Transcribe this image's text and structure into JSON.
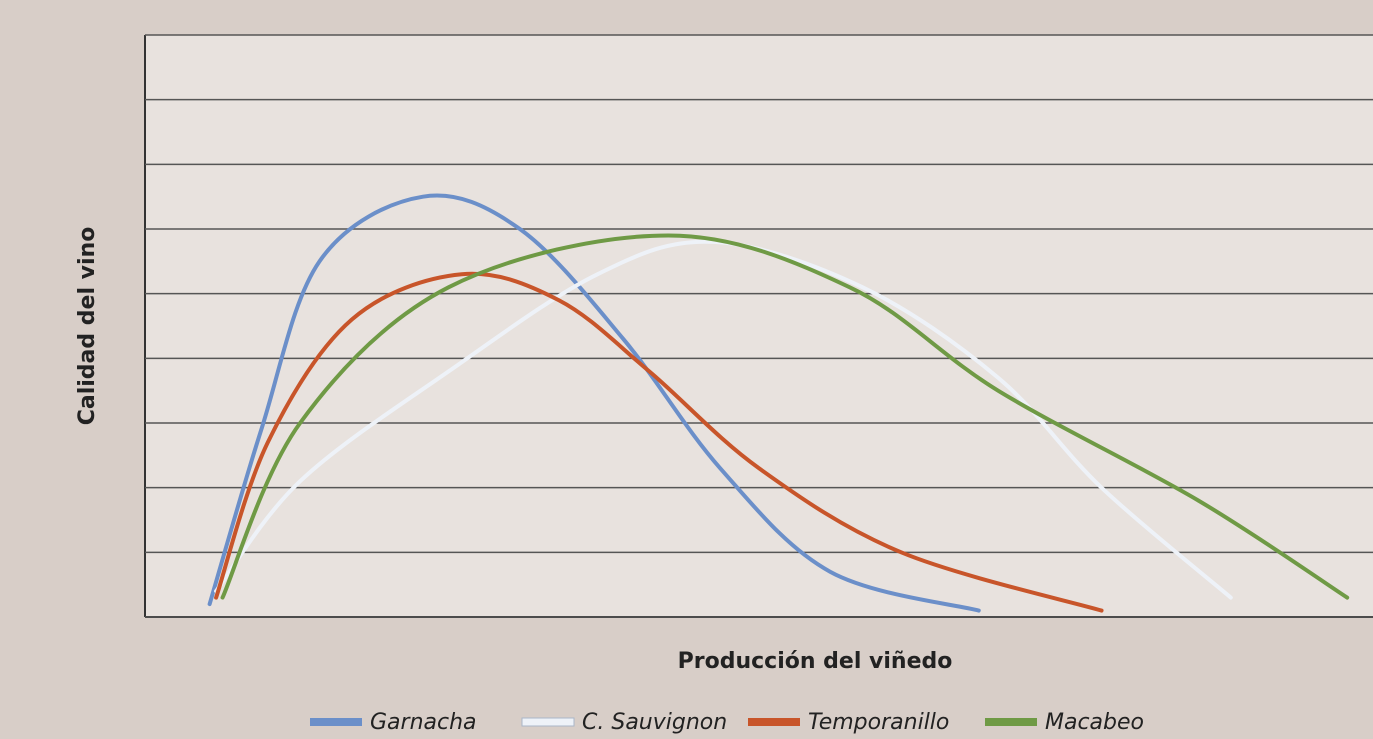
{
  "chart_data": {
    "type": "line",
    "x_label": "Producción del viñedo",
    "y_label": "Calidad del vino",
    "xlim": [
      0,
      19
    ],
    "ylim": [
      0,
      9
    ],
    "yticks": [
      0,
      1,
      2,
      3,
      4,
      5,
      6,
      7,
      8,
      9
    ],
    "grid": true,
    "legend": "bottom",
    "series": [
      {
        "name": "Garnacha",
        "color": "#6b8fc9",
        "x": [
          1.0,
          1.8,
          2.7,
          4.3,
          5.8,
          7.4,
          8.9,
          10.6,
          12.9
        ],
        "values": [
          0.2,
          2.9,
          5.5,
          6.5,
          6.0,
          4.3,
          2.3,
          0.7,
          0.1
        ]
      },
      {
        "name": "C. Sauvignon",
        "color": "#eef2f8",
        "x": [
          1.1,
          2.4,
          4.7,
          7.0,
          8.8,
          11.1,
          13.2,
          14.8,
          16.8
        ],
        "values": [
          0.4,
          2.1,
          3.8,
          5.3,
          5.8,
          5.1,
          3.7,
          2.0,
          0.3
        ]
      },
      {
        "name": "Temporanillo",
        "color": "#c8552a",
        "x": [
          1.1,
          1.9,
          3.2,
          4.9,
          6.4,
          7.8,
          9.5,
          11.7,
          14.8
        ],
        "values": [
          0.3,
          2.7,
          4.6,
          5.3,
          4.9,
          3.8,
          2.3,
          1.0,
          0.1
        ]
      },
      {
        "name": "Macabeo",
        "color": "#6f9a45",
        "x": [
          1.2,
          2.4,
          4.7,
          8.1,
          10.9,
          13.2,
          16.3,
          18.6
        ],
        "values": [
          0.3,
          3.0,
          5.1,
          5.9,
          5.1,
          3.5,
          1.8,
          0.3
        ]
      }
    ]
  }
}
